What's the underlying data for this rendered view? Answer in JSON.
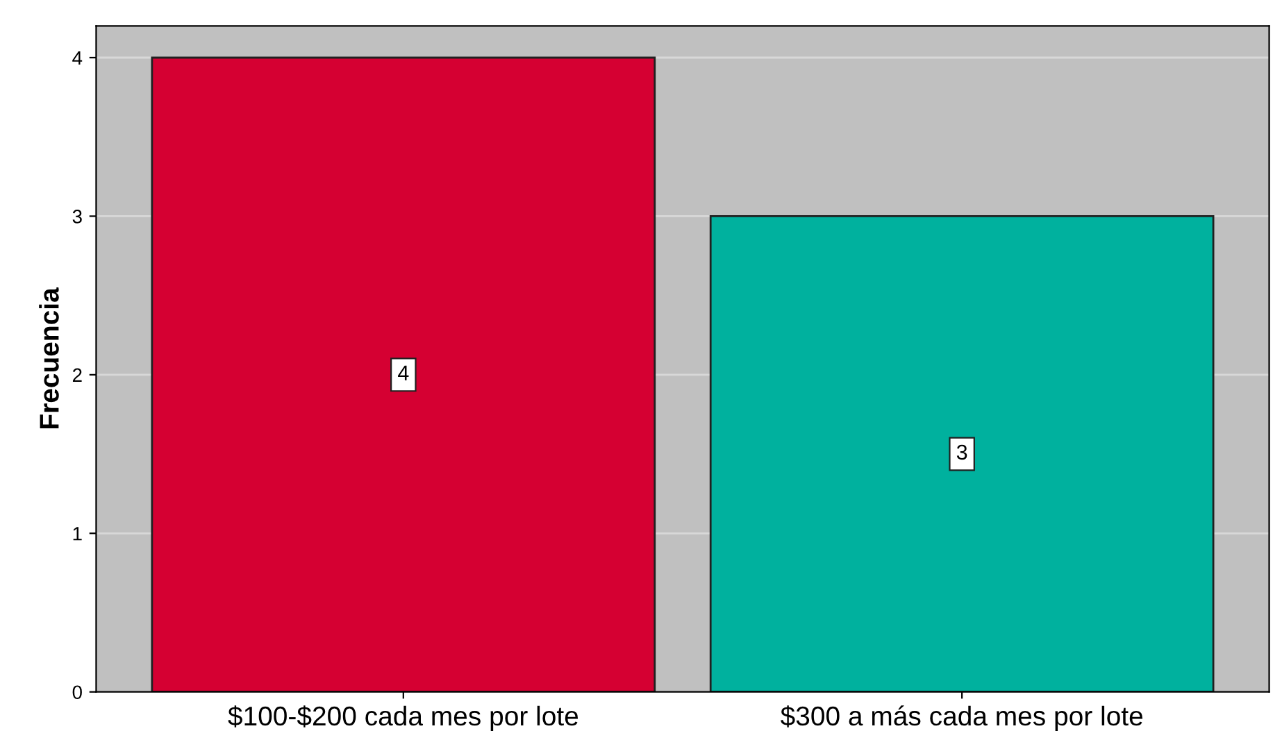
{
  "chart_data": {
    "type": "bar",
    "ylabel": "Frecuencia",
    "categories": [
      "$100-$200 cada mes por lote",
      "$300 a más cada mes por lote"
    ],
    "values": [
      4,
      3
    ],
    "colors": [
      "#d50032",
      "#00b19e"
    ],
    "ylim": [
      0,
      4.2
    ],
    "yticks": [
      0,
      1,
      2,
      3,
      4
    ],
    "grid": "y",
    "data_labels": true,
    "legend": false
  }
}
